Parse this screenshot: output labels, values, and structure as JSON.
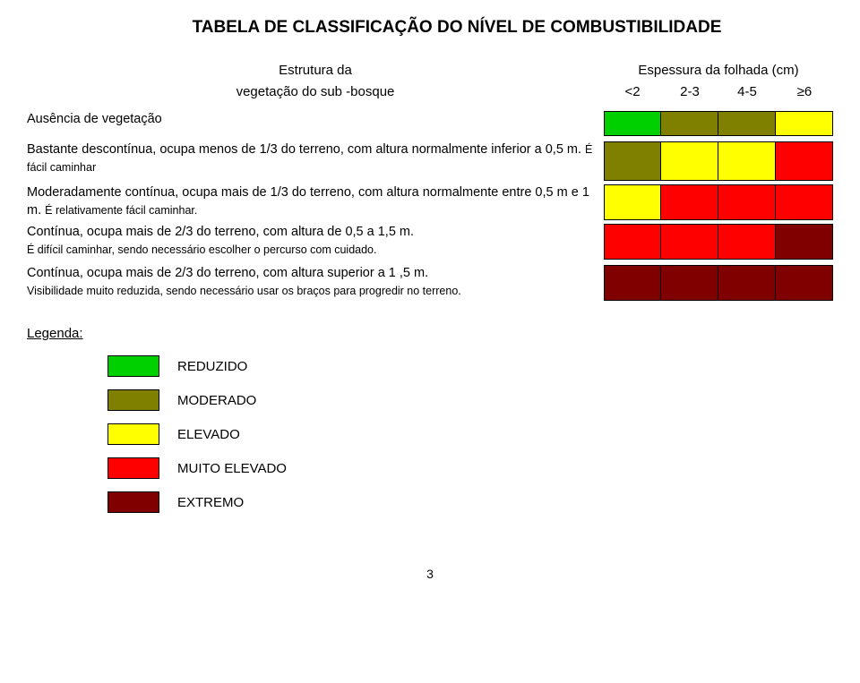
{
  "title": "TABELA DE CLASSIFICAÇÃO DO NÍVEL DE COMBUSTIBILIDADE",
  "header": {
    "left_line1": "Estrutura da",
    "left_line2": "vegetação do sub -bosque",
    "right_line1": "Espessura da folhada (cm)",
    "cols": [
      "<2",
      "2-3",
      "4-5",
      "≥6"
    ]
  },
  "colors": {
    "green": "#00d000",
    "olive": "#808000",
    "yellow": "#ffff00",
    "red": "#ff0000",
    "darkred": "#800000"
  },
  "rows": [
    {
      "text_main": "Ausência de vegetação",
      "text_sub": "",
      "cells": [
        "green",
        "olive",
        "olive",
        "yellow"
      ]
    },
    {
      "text_main": "Bastante descontínua, ocupa menos de 1/3 do terreno, com altura normalmente inferior a 0,5 m. ",
      "text_sub": "É fácil caminhar",
      "cells": [
        "olive",
        "yellow",
        "yellow",
        "red"
      ]
    },
    {
      "text_main": "Moderadamente contínua, ocupa mais de 1/3 do terreno, com altura normalmente entre 0,5 m e 1 m. ",
      "text_sub": "É relativamente fácil caminhar.",
      "cells": [
        "yellow",
        "red",
        "red",
        "red"
      ]
    },
    {
      "text_main": "Contínua, ocupa mais de 2/3 do terreno, com altura de 0,5 a 1,5 m.",
      "text_sub": "É difícil caminhar, sendo necessário escolher o percurso com cuidado.",
      "cells": [
        "red",
        "red",
        "red",
        "darkred"
      ]
    },
    {
      "text_main": "Contínua, ocupa mais de 2/3 do terreno, com altura superior a 1 ,5 m.",
      "text_sub": "Visibilidade muito reduzida, sendo necessário usar os braços para progredir no terreno.",
      "cells": [
        "darkred",
        "darkred",
        "darkred",
        "darkred"
      ]
    }
  ],
  "legend": {
    "title": "Legenda:",
    "items": [
      {
        "color": "green",
        "label": "REDUZIDO"
      },
      {
        "color": "olive",
        "label": "MODERADO"
      },
      {
        "color": "yellow",
        "label": "ELEVADO"
      },
      {
        "color": "red",
        "label": "MUITO ELEVADO"
      },
      {
        "color": "darkred",
        "label": "EXTREMO"
      }
    ]
  },
  "page_number": "3"
}
